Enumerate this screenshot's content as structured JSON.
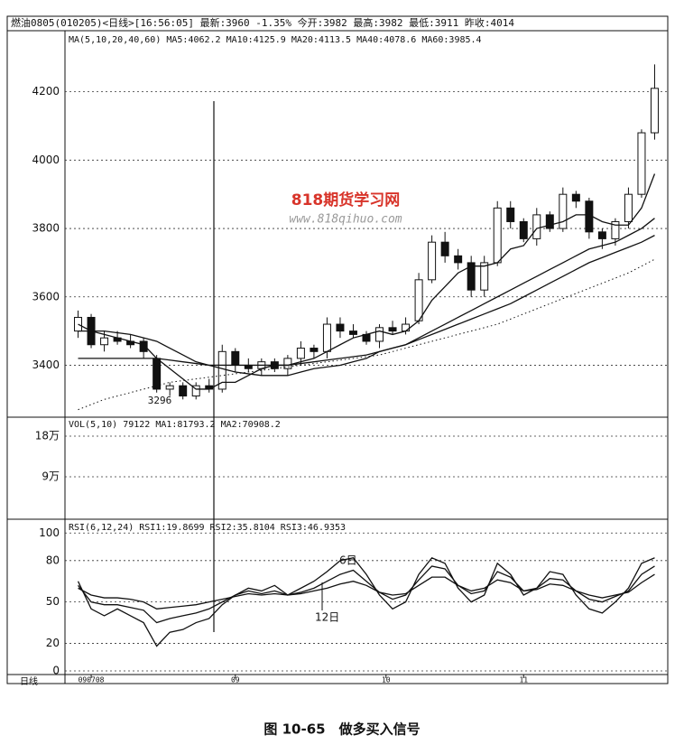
{
  "chart_data": {
    "type": "candlestick",
    "header": "燃油0805(010205)<日线>[16:56:05] 最新:3960 -1.35% 今开:3982 最高:3982 最低:3911 昨收:4014",
    "ma_label": "MA(5,10,20,40,60) MA5:4062.2 MA10:4125.9 MA20:4113.5 MA40:4078.6 MA60:3985.4",
    "vol_label": "VOL(5,10) 79122 MA1:81793.2 MA2:70908.2",
    "rsi_label": "RSI(6,12,24) RSI1:19.8699 RSI2:35.8104 RSI3:46.9353",
    "watermark": "818期货学习网",
    "watermark_url": "www.818qihuo.com",
    "annotations": [
      "3296",
      "6日",
      "12日"
    ],
    "period_label": "日线",
    "caption": "图 10-65　做多买入信号",
    "x": [
      0,
      1,
      2,
      3,
      4,
      5,
      6,
      7,
      8,
      9,
      10,
      11,
      12,
      13,
      14,
      15,
      16,
      17,
      18,
      19,
      20,
      21,
      22,
      23,
      24,
      25,
      26,
      27,
      28,
      29,
      30,
      31,
      32,
      33,
      34,
      35,
      36,
      37,
      38,
      39,
      40,
      41,
      42,
      43,
      44
    ],
    "xlim": [
      -1,
      45
    ],
    "xticks": [
      {
        "value": 1,
        "label": "090708"
      },
      {
        "value": 12,
        "label": "09"
      },
      {
        "value": 23.5,
        "label": "10"
      },
      {
        "value": 34,
        "label": "11"
      }
    ],
    "open": [
      3500,
      3540,
      3460,
      3480,
      3470,
      3470,
      3420,
      3330,
      3340,
      3310,
      3340,
      3330,
      3440,
      3400,
      3390,
      3410,
      3390,
      3420,
      3450,
      3440,
      3520,
      3500,
      3490,
      3470,
      3510,
      3500,
      3530,
      3650,
      3760,
      3720,
      3700,
      3620,
      3700,
      3860,
      3820,
      3770,
      3840,
      3800,
      3900,
      3880,
      3790,
      3770,
      3820,
      3900,
      4080
    ],
    "high": [
      3560,
      3550,
      3500,
      3500,
      3490,
      3480,
      3430,
      3350,
      3350,
      3350,
      3360,
      3460,
      3450,
      3420,
      3420,
      3420,
      3430,
      3470,
      3460,
      3540,
      3540,
      3520,
      3500,
      3520,
      3530,
      3540,
      3670,
      3780,
      3790,
      3740,
      3720,
      3720,
      3880,
      3880,
      3830,
      3860,
      3850,
      3920,
      3910,
      3890,
      3800,
      3830,
      3920,
      4090,
      4280
    ],
    "low": [
      3480,
      3450,
      3440,
      3460,
      3450,
      3420,
      3320,
      3310,
      3300,
      3300,
      3320,
      3320,
      3380,
      3380,
      3370,
      3380,
      3370,
      3400,
      3420,
      3420,
      3480,
      3480,
      3460,
      3450,
      3490,
      3490,
      3520,
      3640,
      3700,
      3680,
      3600,
      3600,
      3690,
      3800,
      3760,
      3750,
      3790,
      3790,
      3860,
      3770,
      3740,
      3750,
      3800,
      3890,
      4060
    ],
    "close": [
      3540,
      3460,
      3480,
      3470,
      3460,
      3440,
      3330,
      3340,
      3310,
      3340,
      3330,
      3440,
      3400,
      3390,
      3410,
      3390,
      3420,
      3450,
      3440,
      3520,
      3500,
      3490,
      3470,
      3510,
      3500,
      3520,
      3650,
      3760,
      3720,
      3700,
      3620,
      3700,
      3860,
      3820,
      3770,
      3840,
      3800,
      3900,
      3880,
      3790,
      3770,
      3820,
      3900,
      4080,
      4210
    ],
    "ylim": [
      3248,
      4376
    ],
    "yticks": [
      3400,
      3600,
      3800,
      4000,
      4200
    ],
    "ma": [
      {
        "name": "MA5",
        "dash": false,
        "values": [
          3520,
          3500,
          3490,
          3480,
          3470,
          3460,
          3420,
          3390,
          3360,
          3330,
          3330,
          3350,
          3350,
          3370,
          3390,
          3400,
          3400,
          3410,
          3420,
          3440,
          3460,
          3480,
          3490,
          3500,
          3490,
          3500,
          3530,
          3590,
          3630,
          3670,
          3690,
          3690,
          3700,
          3740,
          3750,
          3800,
          3810,
          3820,
          3840,
          3840,
          3820,
          3810,
          3810,
          3860,
          3960
        ]
      },
      {
        "name": "MA20",
        "dash": false,
        "values": [
          3500,
          3500,
          3500,
          3495,
          3490,
          3480,
          3470,
          3450,
          3430,
          3410,
          3400,
          3390,
          3380,
          3375,
          3370,
          3370,
          3370,
          3380,
          3390,
          3395,
          3400,
          3410,
          3420,
          3440,
          3450,
          3460,
          3480,
          3500,
          3520,
          3540,
          3560,
          3580,
          3600,
          3620,
          3640,
          3660,
          3680,
          3700,
          3720,
          3740,
          3750,
          3760,
          3780,
          3800,
          3830
        ]
      },
      {
        "name": "MA40",
        "dash": false,
        "values": [
          3420,
          3420,
          3420,
          3420,
          3420,
          3420,
          3420,
          3415,
          3410,
          3405,
          3400,
          3400,
          3400,
          3400,
          3400,
          3400,
          3400,
          3405,
          3410,
          3415,
          3420,
          3425,
          3430,
          3440,
          3450,
          3460,
          3475,
          3490,
          3505,
          3520,
          3535,
          3550,
          3565,
          3580,
          3600,
          3620,
          3640,
          3660,
          3680,
          3700,
          3715,
          3730,
          3745,
          3760,
          3780
        ]
      },
      {
        "name": "MA60",
        "dash": true,
        "values": [
          3270,
          3285,
          3300,
          3310,
          3320,
          3330,
          3340,
          3350,
          3355,
          3360,
          3365,
          3370,
          3375,
          3380,
          3385,
          3390,
          3395,
          3400,
          3405,
          3410,
          3415,
          3420,
          3425,
          3430,
          3440,
          3450,
          3460,
          3470,
          3480,
          3490,
          3500,
          3510,
          3520,
          3535,
          3550,
          3565,
          3580,
          3595,
          3610,
          3625,
          3640,
          3655,
          3670,
          3690,
          3710
        ]
      }
    ],
    "vol_ylim": [
      0,
      222000
    ],
    "vol_yticks": [
      {
        "value": 90000,
        "label": "9万"
      },
      {
        "value": 180000,
        "label": "18万"
      }
    ],
    "rsi_ylim": [
      0,
      110
    ],
    "rsi_yticks": [
      0,
      20,
      50,
      80,
      100
    ],
    "rsi": [
      {
        "name": "RSI1",
        "values": [
          65,
          45,
          40,
          45,
          40,
          35,
          18,
          28,
          30,
          35,
          38,
          48,
          55,
          60,
          58,
          62,
          55,
          60,
          65,
          72,
          80,
          82,
          70,
          55,
          45,
          50,
          70,
          82,
          78,
          60,
          50,
          55,
          78,
          70,
          55,
          60,
          72,
          70,
          55,
          45,
          42,
          50,
          60,
          78,
          82
        ]
      },
      {
        "name": "RSI2",
        "values": [
          62,
          50,
          48,
          48,
          46,
          44,
          35,
          38,
          40,
          42,
          45,
          50,
          55,
          58,
          56,
          58,
          55,
          57,
          60,
          65,
          70,
          73,
          65,
          57,
          52,
          55,
          66,
          76,
          74,
          62,
          56,
          58,
          72,
          68,
          58,
          60,
          67,
          66,
          58,
          52,
          50,
          54,
          58,
          70,
          76
        ]
      },
      {
        "name": "RSI3",
        "values": [
          60,
          55,
          53,
          53,
          52,
          50,
          45,
          46,
          47,
          48,
          50,
          52,
          54,
          56,
          55,
          56,
          55,
          56,
          58,
          60,
          63,
          65,
          62,
          57,
          55,
          56,
          62,
          68,
          68,
          62,
          58,
          60,
          66,
          64,
          58,
          59,
          63,
          62,
          58,
          55,
          53,
          55,
          57,
          64,
          70
        ]
      }
    ]
  }
}
